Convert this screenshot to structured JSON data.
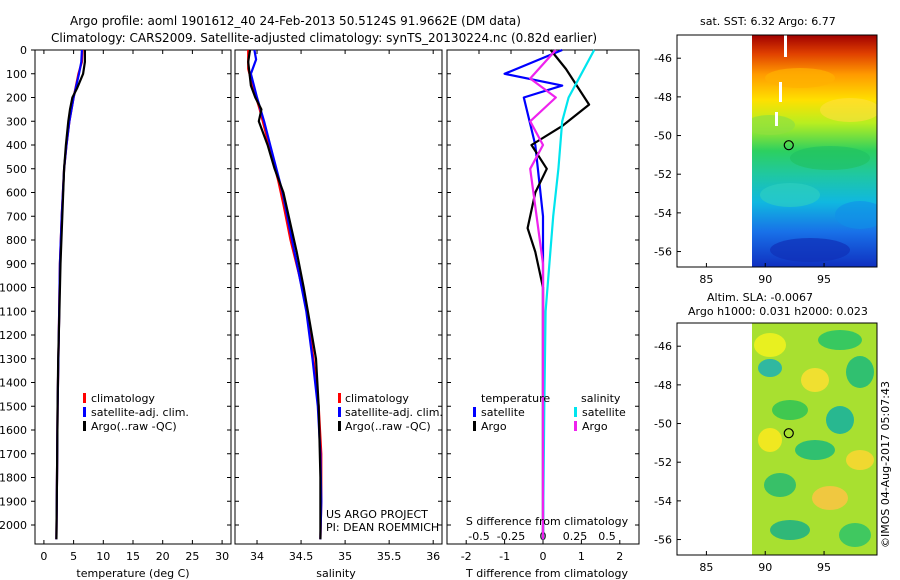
{
  "figure": {
    "title_line1": "Argo profile: aoml 1901612_40 24-Feb-2013 50.5124S 91.9662E (DM data)",
    "title_line2": "Climatology: CARS2009. Satellite-adjusted climatology: synTS_20130224.nc (0.82d earlier)",
    "project_line1": "US ARGO PROJECT",
    "project_line2": "PI: DEAN ROEMMICH",
    "imos_stamp": "©IMOS 04-Aug-2017 05:07:43"
  },
  "colors": {
    "climatology": "#ff0000",
    "satellite": "#0000ff",
    "argo": "#000000",
    "satellite_s": "#00e5ee",
    "argo_s": "#ee22ee"
  },
  "chart_data": [
    {
      "id": "temperature",
      "type": "line",
      "xlabel": "temperature (deg C)",
      "ylim": [
        2080,
        0
      ],
      "xlim": [
        -1.5,
        31.5
      ],
      "xticks": [
        0,
        5,
        10,
        15,
        20,
        25,
        30
      ],
      "legend": [
        "climatology",
        "satellite-adj. clim.",
        "Argo(..raw -QC)"
      ],
      "series": [
        {
          "name": "climatology",
          "color": "#ff0000",
          "x": [
            6.5,
            6.4,
            5.8,
            5.0,
            4.3,
            3.8,
            3.4,
            3.0,
            2.7,
            2.5,
            2.3,
            2.2,
            2.1
          ],
          "y": [
            0,
            50,
            100,
            200,
            300,
            400,
            500,
            700,
            900,
            1200,
            1500,
            1800,
            2060
          ]
        },
        {
          "name": "satellite-adj. clim.",
          "color": "#0000ff",
          "x": [
            6.4,
            6.3,
            5.9,
            5.0,
            4.3,
            3.8,
            3.4,
            3.0,
            2.7,
            2.5,
            2.3,
            2.2,
            2.1
          ],
          "y": [
            0,
            50,
            100,
            200,
            300,
            400,
            500,
            700,
            900,
            1200,
            1500,
            1800,
            2060
          ]
        },
        {
          "name": "Argo(..raw -QC)",
          "color": "#000000",
          "x": [
            6.9,
            6.9,
            6.6,
            5.6,
            4.8,
            4.4,
            4.1,
            3.7,
            3.4,
            3.1,
            2.8,
            2.6,
            2.4,
            2.3,
            2.2,
            2.1
          ],
          "y": [
            0,
            50,
            100,
            160,
            200,
            250,
            300,
            400,
            500,
            700,
            900,
            1100,
            1300,
            1500,
            1800,
            2060
          ]
        }
      ]
    },
    {
      "id": "salinity",
      "type": "line",
      "xlabel": "salinity",
      "ylim": [
        2080,
        0
      ],
      "xlim": [
        33.75,
        36.1
      ],
      "xticks": [
        34,
        34.5,
        35,
        35.5,
        36
      ],
      "legend": [
        "climatology",
        "satellite-adj. clim.",
        "Argo(..raw -QC)"
      ],
      "series": [
        {
          "name": "climatology",
          "color": "#ff0000",
          "x": [
            33.9,
            33.9,
            33.95,
            34.03,
            34.1,
            34.17,
            34.24,
            34.3,
            34.38,
            34.48,
            34.57,
            34.64,
            34.7,
            34.73,
            34.73,
            34.72
          ],
          "y": [
            0,
            80,
            150,
            250,
            350,
            450,
            550,
            650,
            800,
            950,
            1100,
            1300,
            1500,
            1700,
            1900,
            2060
          ]
        },
        {
          "name": "satellite-adj. clim.",
          "color": "#0000ff",
          "x": [
            33.97,
            33.99,
            33.93,
            34.0,
            34.08,
            34.15,
            34.22,
            34.29,
            34.37,
            34.48,
            34.56,
            34.63,
            34.69,
            34.72,
            34.73,
            34.72
          ],
          "y": [
            0,
            40,
            100,
            200,
            300,
            400,
            500,
            600,
            750,
            950,
            1100,
            1300,
            1500,
            1700,
            1900,
            2060
          ]
        },
        {
          "name": "Argo(..raw -QC)",
          "color": "#000000",
          "x": [
            33.92,
            33.9,
            33.93,
            33.98,
            34.05,
            34.02,
            34.12,
            34.2,
            34.3,
            34.36,
            34.45,
            34.53,
            34.6,
            34.67,
            34.7,
            34.72,
            34.72
          ],
          "y": [
            0,
            50,
            150,
            200,
            250,
            300,
            400,
            500,
            600,
            700,
            850,
            1000,
            1150,
            1300,
            1500,
            1800,
            2060
          ]
        }
      ]
    },
    {
      "id": "differences",
      "type": "line",
      "xlabel_top": "S difference from climatology",
      "xlabel_bottom": "T difference from climatology",
      "ylim": [
        2080,
        0
      ],
      "xlim_T": [
        -2.5,
        2.5
      ],
      "xticks_T": [
        -2,
        -1,
        0,
        1,
        2
      ],
      "xlim_S": [
        -0.75,
        0.75
      ],
      "xticks_S": [
        -0.5,
        -0.25,
        0,
        0.25,
        0.5
      ],
      "xtick_labels_S": [
        "-0.5",
        "-0.25",
        "0",
        "0.25",
        "0.5"
      ],
      "legend_temperature_title": "temperature",
      "legend_salinity_title": "salinity",
      "legend_temperature": [
        "satellite",
        "Argo"
      ],
      "legend_salinity": [
        "satellite",
        "Argo"
      ],
      "series": [
        {
          "name": "T satellite",
          "color": "#0000ff",
          "axis": "T",
          "x": [
            0.5,
            -1.0,
            0.5,
            -0.5,
            -0.2,
            0.0,
            0.0,
            0.0,
            0.0,
            0.0,
            0.0,
            0.0
          ],
          "y": [
            0,
            100,
            150,
            200,
            400,
            700,
            900,
            1000,
            1200,
            1500,
            1800,
            2060
          ]
        },
        {
          "name": "T Argo",
          "color": "#000000",
          "axis": "T",
          "x": [
            0.2,
            0.6,
            1.2,
            0.5,
            -0.3,
            0.1,
            -0.2,
            -0.4,
            -0.2,
            0.0,
            0.0,
            0.0
          ],
          "y": [
            0,
            80,
            230,
            320,
            400,
            500,
            600,
            750,
            850,
            1000,
            1500,
            2060
          ]
        },
        {
          "name": "S satellite",
          "color": "#00e5ee",
          "axis": "S",
          "x": [
            0.4,
            0.3,
            0.2,
            0.15,
            0.12,
            0.08,
            0.05,
            0.02,
            0.01,
            0.0
          ],
          "y": [
            0,
            100,
            200,
            300,
            500,
            700,
            900,
            1100,
            1500,
            2060
          ]
        },
        {
          "name": "S Argo",
          "color": "#ee22ee",
          "axis": "S",
          "x": [
            0.1,
            -0.1,
            0.1,
            -0.1,
            0.0,
            -0.1,
            -0.05,
            0.0,
            0.0,
            0.0
          ],
          "y": [
            0,
            120,
            200,
            300,
            400,
            500,
            700,
            900,
            1500,
            2060
          ]
        }
      ]
    },
    {
      "id": "sst-map",
      "type": "heatmap",
      "title": "sat. SST: 6.32  Argo: 6.77",
      "xticks": [
        85,
        90,
        95
      ],
      "yticks": [
        -46,
        -48,
        -50,
        -52,
        -54,
        -56
      ],
      "xlim": [
        82.5,
        99.5
      ],
      "ylim": [
        -56.8,
        -44.8
      ],
      "data_xmin": 90,
      "float_position": [
        92.0,
        -50.5
      ]
    },
    {
      "id": "sla-map",
      "type": "heatmap",
      "title_line1": "Altim. SLA: -0.0067",
      "title_line2": "Argo h1000: 0.031 h2000: 0.023",
      "xticks": [
        85,
        90,
        95
      ],
      "yticks": [
        -46,
        -48,
        -50,
        -52,
        -54,
        -56
      ],
      "xlim": [
        82.5,
        99.5
      ],
      "ylim": [
        -56.8,
        -44.8
      ],
      "data_xmin": 90,
      "float_position": [
        92.0,
        -50.5
      ]
    }
  ],
  "depth_axis": {
    "ticks": [
      0,
      100,
      200,
      300,
      400,
      500,
      600,
      700,
      800,
      900,
      1000,
      1100,
      1200,
      1300,
      1400,
      1500,
      1600,
      1700,
      1800,
      1900,
      2000
    ]
  }
}
